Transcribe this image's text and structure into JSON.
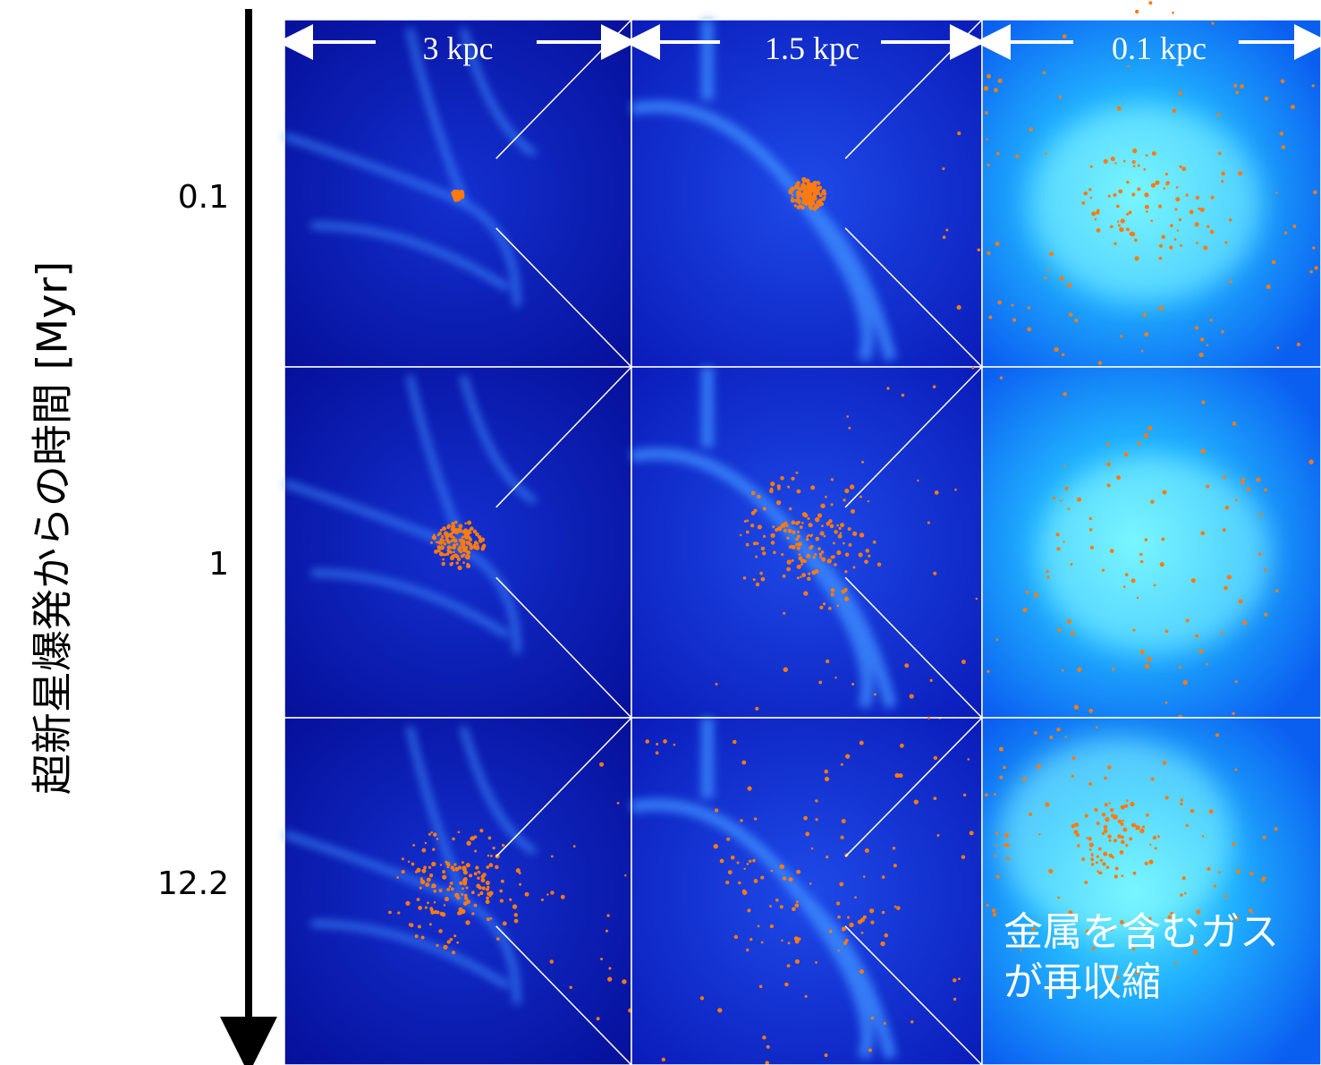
{
  "axis_label": "超新星爆発からの時間 [Myr]",
  "rows": [
    {
      "label": "0.1"
    },
    {
      "label": "1"
    },
    {
      "label": "12.2"
    }
  ],
  "columns": [
    {
      "scale": "3 kpc"
    },
    {
      "scale": "1.5 kpc"
    },
    {
      "scale": "0.1 kpc"
    }
  ],
  "annotation": [
    "金属を含むガス",
    "が再収縮"
  ]
}
